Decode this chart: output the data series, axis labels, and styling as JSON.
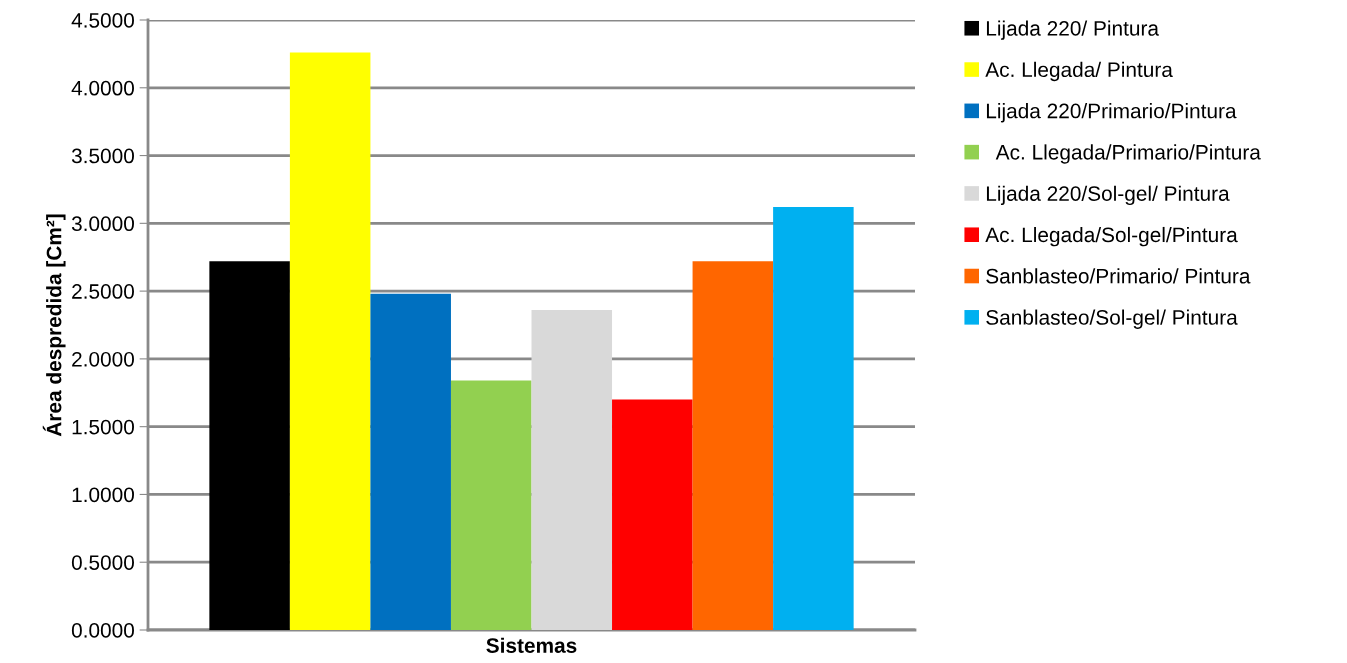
{
  "chart_data": {
    "type": "bar",
    "xlabel": "Sistemas",
    "ylabel": "Área despredida [Cm²]",
    "categories": [
      null
    ],
    "series": [
      {
        "name": "Lijada 220/ Pintura",
        "color": "#000000",
        "values": [
          2.72
        ]
      },
      {
        "name": "Ac. Llegada/ Pintura",
        "color": "#ffff00",
        "values": [
          4.26
        ]
      },
      {
        "name": "Lijada 220/Primario/Pintura",
        "color": "#0070c0",
        "values": [
          2.48
        ]
      },
      {
        "name": "  Ac. Llegada/Primario/Pintura",
        "color": "#92d050",
        "values": [
          1.84
        ]
      },
      {
        "name": "Lijada 220/Sol-gel/ Pintura",
        "color": "#d9d9d9",
        "values": [
          2.36
        ]
      },
      {
        "name": "Ac. Llegada/Sol-gel/Pintura",
        "color": "#ff0000",
        "values": [
          1.7
        ]
      },
      {
        "name": "Sanblasteo/Primario/ Pintura",
        "color": "#ff6600",
        "values": [
          2.72
        ]
      },
      {
        "name": "Sanblasteo/Sol-gel/ Pintura",
        "color": "#00b0f0",
        "values": [
          3.12
        ]
      }
    ],
    "ylim": [
      0,
      4.5
    ],
    "yticks": [
      {
        "value": 0,
        "label": "0.0000"
      },
      {
        "value": 0.5,
        "label": "0.5000"
      },
      {
        "value": 1,
        "label": "1.0000"
      },
      {
        "value": 1.5,
        "label": "1.5000"
      },
      {
        "value": 2,
        "label": "2.0000"
      },
      {
        "value": 2.5,
        "label": "2.5000"
      },
      {
        "value": 3,
        "label": "3.0000"
      },
      {
        "value": 3.5,
        "label": "3.5000"
      },
      {
        "value": 4,
        "label": "4.0000"
      },
      {
        "value": 4.5,
        "label": "4.5000"
      }
    ],
    "grid": "y",
    "legend": "right"
  }
}
